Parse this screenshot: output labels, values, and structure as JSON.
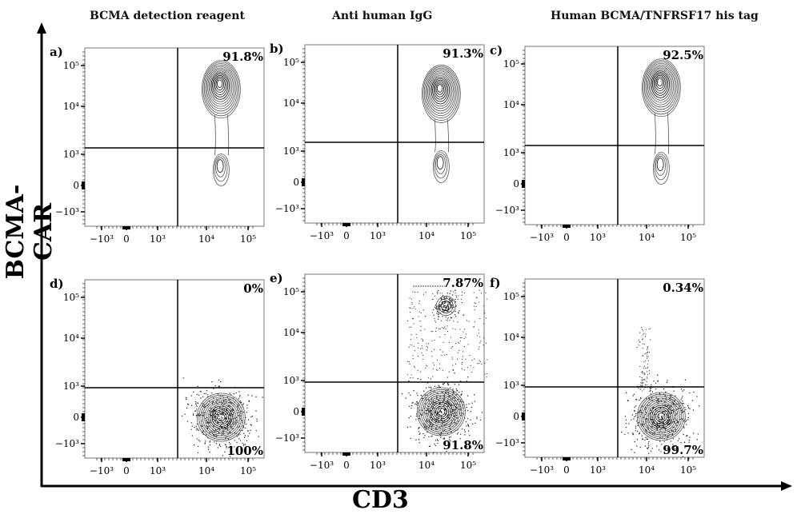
{
  "column_titles": [
    "BCMA detection reagent",
    "Anti human IgG",
    "Human BCMA/TNFRSF17 his tag"
  ],
  "y_axis_label": "BCMA-CAR",
  "x_axis_label": "CD3",
  "chart_data": [
    {
      "type": "contour",
      "panel": "a)",
      "x_ticks": [
        "−10³",
        "0",
        "10³",
        "10⁴",
        "10⁵"
      ],
      "y_ticks": [
        "10⁵",
        "10⁴",
        "10³",
        "0",
        "−10³"
      ],
      "quadrant_label_top_right": "91.8%",
      "quadrant_label_bottom_right": "",
      "style": "contour",
      "populations": [
        {
          "cd3": 20000,
          "bcma_car": 30000
        },
        {
          "cd3": 20000,
          "bcma_car": 500
        }
      ]
    },
    {
      "type": "contour",
      "panel": "b)",
      "x_ticks": [
        "−10³",
        "0",
        "10³",
        "10⁴",
        "10⁵"
      ],
      "y_ticks": [
        "10⁵",
        "10⁴",
        "10³",
        "0",
        "−10³"
      ],
      "quadrant_label_top_right": "91.3%",
      "quadrant_label_bottom_right": "",
      "style": "contour",
      "populations": [
        {
          "cd3": 20000,
          "bcma_car": 20000
        },
        {
          "cd3": 20000,
          "bcma_car": 500
        }
      ]
    },
    {
      "type": "contour",
      "panel": "c)",
      "x_ticks": [
        "−10³",
        "0",
        "10³",
        "10⁴",
        "10⁵"
      ],
      "y_ticks": [
        "10⁵",
        "10⁴",
        "10³",
        "0",
        "−10³"
      ],
      "quadrant_label_top_right": "92.5%",
      "quadrant_label_bottom_right": "",
      "style": "contour",
      "populations": [
        {
          "cd3": 20000,
          "bcma_car": 30000
        },
        {
          "cd3": 20000,
          "bcma_car": 500
        }
      ]
    },
    {
      "type": "contour",
      "panel": "d)",
      "x_ticks": [
        "−10³",
        "0",
        "10³",
        "10⁴",
        "10⁵"
      ],
      "y_ticks": [
        "10⁵",
        "10⁴",
        "10³",
        "0",
        "−10³"
      ],
      "quadrant_label_top_right": "0%",
      "quadrant_label_bottom_right": "100%",
      "style": "contour+dots",
      "populations": [
        {
          "cd3": 20000,
          "bcma_car": 0
        }
      ]
    },
    {
      "type": "contour",
      "panel": "e)",
      "x_ticks": [
        "−10³",
        "0",
        "10³",
        "10⁴",
        "10⁵"
      ],
      "y_ticks": [
        "10⁵",
        "10⁴",
        "10³",
        "0",
        "−10³"
      ],
      "quadrant_label_top_right": "7.87%",
      "quadrant_label_bottom_right": "91.8%",
      "style": "contour+dots",
      "populations": [
        {
          "cd3": 20000,
          "bcma_car": 0
        },
        {
          "cd3": 25000,
          "bcma_car": 50000
        }
      ]
    },
    {
      "type": "contour",
      "panel": "f)",
      "x_ticks": [
        "−10³",
        "0",
        "10³",
        "10⁴",
        "10⁵"
      ],
      "y_ticks": [
        "10⁵",
        "10⁴",
        "10³",
        "0",
        "−10³"
      ],
      "quadrant_label_top_right": "0.34%",
      "quadrant_label_bottom_right": "99.7%",
      "style": "contour+dots",
      "populations": [
        {
          "cd3": 20000,
          "bcma_car": 0
        }
      ]
    }
  ]
}
